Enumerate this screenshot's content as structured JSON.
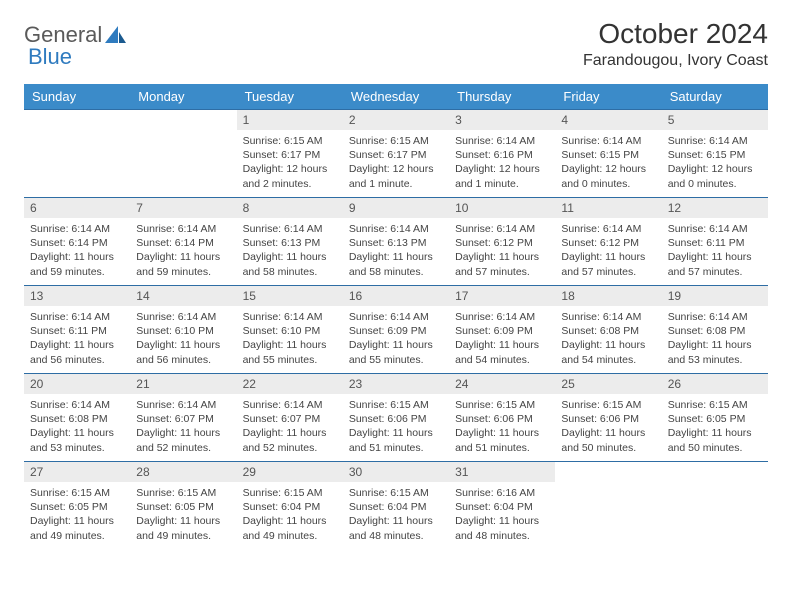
{
  "logo": {
    "text1": "General",
    "text2": "Blue"
  },
  "title": "October 2024",
  "location": "Farandougou, Ivory Coast",
  "colors": {
    "header_bg": "#3b8bc9",
    "header_text": "#ffffff",
    "daynum_bg": "#ececec",
    "border": "#2e6da4",
    "logo_gray": "#5a5a5a",
    "logo_blue": "#2f7bbf"
  },
  "weekdays": [
    "Sunday",
    "Monday",
    "Tuesday",
    "Wednesday",
    "Thursday",
    "Friday",
    "Saturday"
  ],
  "weeks": [
    [
      null,
      null,
      {
        "n": "1",
        "sr": "Sunrise: 6:15 AM",
        "ss": "Sunset: 6:17 PM",
        "dl": "Daylight: 12 hours and 2 minutes."
      },
      {
        "n": "2",
        "sr": "Sunrise: 6:15 AM",
        "ss": "Sunset: 6:17 PM",
        "dl": "Daylight: 12 hours and 1 minute."
      },
      {
        "n": "3",
        "sr": "Sunrise: 6:14 AM",
        "ss": "Sunset: 6:16 PM",
        "dl": "Daylight: 12 hours and 1 minute."
      },
      {
        "n": "4",
        "sr": "Sunrise: 6:14 AM",
        "ss": "Sunset: 6:15 PM",
        "dl": "Daylight: 12 hours and 0 minutes."
      },
      {
        "n": "5",
        "sr": "Sunrise: 6:14 AM",
        "ss": "Sunset: 6:15 PM",
        "dl": "Daylight: 12 hours and 0 minutes."
      }
    ],
    [
      {
        "n": "6",
        "sr": "Sunrise: 6:14 AM",
        "ss": "Sunset: 6:14 PM",
        "dl": "Daylight: 11 hours and 59 minutes."
      },
      {
        "n": "7",
        "sr": "Sunrise: 6:14 AM",
        "ss": "Sunset: 6:14 PM",
        "dl": "Daylight: 11 hours and 59 minutes."
      },
      {
        "n": "8",
        "sr": "Sunrise: 6:14 AM",
        "ss": "Sunset: 6:13 PM",
        "dl": "Daylight: 11 hours and 58 minutes."
      },
      {
        "n": "9",
        "sr": "Sunrise: 6:14 AM",
        "ss": "Sunset: 6:13 PM",
        "dl": "Daylight: 11 hours and 58 minutes."
      },
      {
        "n": "10",
        "sr": "Sunrise: 6:14 AM",
        "ss": "Sunset: 6:12 PM",
        "dl": "Daylight: 11 hours and 57 minutes."
      },
      {
        "n": "11",
        "sr": "Sunrise: 6:14 AM",
        "ss": "Sunset: 6:12 PM",
        "dl": "Daylight: 11 hours and 57 minutes."
      },
      {
        "n": "12",
        "sr": "Sunrise: 6:14 AM",
        "ss": "Sunset: 6:11 PM",
        "dl": "Daylight: 11 hours and 57 minutes."
      }
    ],
    [
      {
        "n": "13",
        "sr": "Sunrise: 6:14 AM",
        "ss": "Sunset: 6:11 PM",
        "dl": "Daylight: 11 hours and 56 minutes."
      },
      {
        "n": "14",
        "sr": "Sunrise: 6:14 AM",
        "ss": "Sunset: 6:10 PM",
        "dl": "Daylight: 11 hours and 56 minutes."
      },
      {
        "n": "15",
        "sr": "Sunrise: 6:14 AM",
        "ss": "Sunset: 6:10 PM",
        "dl": "Daylight: 11 hours and 55 minutes."
      },
      {
        "n": "16",
        "sr": "Sunrise: 6:14 AM",
        "ss": "Sunset: 6:09 PM",
        "dl": "Daylight: 11 hours and 55 minutes."
      },
      {
        "n": "17",
        "sr": "Sunrise: 6:14 AM",
        "ss": "Sunset: 6:09 PM",
        "dl": "Daylight: 11 hours and 54 minutes."
      },
      {
        "n": "18",
        "sr": "Sunrise: 6:14 AM",
        "ss": "Sunset: 6:08 PM",
        "dl": "Daylight: 11 hours and 54 minutes."
      },
      {
        "n": "19",
        "sr": "Sunrise: 6:14 AM",
        "ss": "Sunset: 6:08 PM",
        "dl": "Daylight: 11 hours and 53 minutes."
      }
    ],
    [
      {
        "n": "20",
        "sr": "Sunrise: 6:14 AM",
        "ss": "Sunset: 6:08 PM",
        "dl": "Daylight: 11 hours and 53 minutes."
      },
      {
        "n": "21",
        "sr": "Sunrise: 6:14 AM",
        "ss": "Sunset: 6:07 PM",
        "dl": "Daylight: 11 hours and 52 minutes."
      },
      {
        "n": "22",
        "sr": "Sunrise: 6:14 AM",
        "ss": "Sunset: 6:07 PM",
        "dl": "Daylight: 11 hours and 52 minutes."
      },
      {
        "n": "23",
        "sr": "Sunrise: 6:15 AM",
        "ss": "Sunset: 6:06 PM",
        "dl": "Daylight: 11 hours and 51 minutes."
      },
      {
        "n": "24",
        "sr": "Sunrise: 6:15 AM",
        "ss": "Sunset: 6:06 PM",
        "dl": "Daylight: 11 hours and 51 minutes."
      },
      {
        "n": "25",
        "sr": "Sunrise: 6:15 AM",
        "ss": "Sunset: 6:06 PM",
        "dl": "Daylight: 11 hours and 50 minutes."
      },
      {
        "n": "26",
        "sr": "Sunrise: 6:15 AM",
        "ss": "Sunset: 6:05 PM",
        "dl": "Daylight: 11 hours and 50 minutes."
      }
    ],
    [
      {
        "n": "27",
        "sr": "Sunrise: 6:15 AM",
        "ss": "Sunset: 6:05 PM",
        "dl": "Daylight: 11 hours and 49 minutes."
      },
      {
        "n": "28",
        "sr": "Sunrise: 6:15 AM",
        "ss": "Sunset: 6:05 PM",
        "dl": "Daylight: 11 hours and 49 minutes."
      },
      {
        "n": "29",
        "sr": "Sunrise: 6:15 AM",
        "ss": "Sunset: 6:04 PM",
        "dl": "Daylight: 11 hours and 49 minutes."
      },
      {
        "n": "30",
        "sr": "Sunrise: 6:15 AM",
        "ss": "Sunset: 6:04 PM",
        "dl": "Daylight: 11 hours and 48 minutes."
      },
      {
        "n": "31",
        "sr": "Sunrise: 6:16 AM",
        "ss": "Sunset: 6:04 PM",
        "dl": "Daylight: 11 hours and 48 minutes."
      },
      null,
      null
    ]
  ]
}
